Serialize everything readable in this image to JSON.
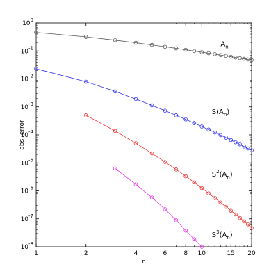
{
  "chart_data": {
    "type": "line",
    "xscale": "log",
    "yscale": "log",
    "xlim": [
      1,
      20
    ],
    "ylim": [
      1e-08,
      1
    ],
    "xlabel": "n",
    "ylabel": "abs. error",
    "title": "",
    "grid": false,
    "legend": "none",
    "x_ticks": [
      {
        "value": 1,
        "label": "1"
      },
      {
        "value": 2,
        "label": "2"
      },
      {
        "value": 4,
        "label": "4"
      },
      {
        "value": 6,
        "label": "6"
      },
      {
        "value": 8,
        "label": "8"
      },
      {
        "value": 10,
        "label": "10"
      },
      {
        "value": 15,
        "label": "15"
      },
      {
        "value": 20,
        "label": "20"
      }
    ],
    "y_ticks": [
      {
        "value": 1,
        "base": "10",
        "exp": "0"
      },
      {
        "value": 0.1,
        "base": "10",
        "exp": "-1"
      },
      {
        "value": 0.01,
        "base": "10",
        "exp": "-2"
      },
      {
        "value": 0.001,
        "base": "10",
        "exp": "-3"
      },
      {
        "value": 0.0001,
        "base": "10",
        "exp": "-4"
      },
      {
        "value": 1e-05,
        "base": "10",
        "exp": "-5"
      },
      {
        "value": 1e-06,
        "base": "10",
        "exp": "-6"
      },
      {
        "value": 1e-07,
        "base": "10",
        "exp": "-7"
      },
      {
        "value": 1e-08,
        "base": "10",
        "exp": "-8"
      }
    ],
    "series": [
      {
        "key": "a",
        "label_main": "A",
        "label_sup": "",
        "label_sub": "n",
        "label_pos": [
          13,
          0.147
        ],
        "color": "#555555",
        "x": [
          1,
          2,
          3,
          4,
          5,
          6,
          7,
          8,
          9,
          10,
          11,
          12,
          13,
          14,
          15,
          16,
          17,
          18,
          19,
          20
        ],
        "y": [
          0.459,
          0.318,
          0.242,
          0.1956,
          0.164,
          0.141,
          0.1237,
          0.1102,
          0.0993,
          0.0904,
          0.0829,
          0.0766,
          0.0711,
          0.0664,
          0.0622,
          0.0585,
          0.0553,
          0.0523,
          0.0497,
          0.0473
        ]
      },
      {
        "key": "s1",
        "label_main": "S(A",
        "label_sup": "",
        "label_sub": "n",
        "label_tail": ")",
        "label_pos": [
          11.5,
          0.00055
        ],
        "color": "#3333ee",
        "x": [
          1,
          2,
          3,
          4,
          5,
          6,
          7,
          8,
          9,
          10,
          11,
          12,
          13,
          14,
          15,
          16,
          17,
          18,
          19,
          20
        ],
        "y": [
          0.023,
          0.00794,
          0.00359,
          0.00191,
          0.00114,
          0.000733,
          0.000501,
          0.000357,
          0.000263,
          0.000199,
          0.000155,
          0.000122,
          9.77e-05,
          7.94e-05,
          6.52e-05,
          5.41e-05,
          4.54e-05,
          3.84e-05,
          3.28e-05,
          2.81e-05
        ]
      },
      {
        "key": "s2",
        "label_main": "S",
        "label_sup": "2",
        "label_sub": "n",
        "label_mid": "(A",
        "label_tail": ")",
        "label_pos": [
          11.5,
          3.2e-06
        ],
        "color": "#ee3333",
        "x": [
          2,
          3,
          4,
          5,
          6,
          7,
          8,
          9,
          10,
          11,
          12,
          13,
          14,
          15,
          16,
          17,
          18,
          19,
          20
        ],
        "y": [
          0.000501,
          0.000138,
          5.01e-05,
          2.19e-05,
          1.07e-05,
          5.78e-06,
          3.31e-06,
          2e-06,
          1.26e-06,
          8.13e-07,
          5.5e-07,
          3.8e-07,
          2.68e-07,
          1.94e-07,
          1.44e-07,
          1.07e-07,
          8.13e-08,
          6.31e-08,
          4.68e-08
        ]
      },
      {
        "key": "s3",
        "label_main": "S",
        "label_sup": "3",
        "label_sub": "n",
        "label_mid": "(A",
        "label_tail": ")",
        "label_pos": [
          11.5,
          2.2e-08
        ],
        "color": "#ee33ee",
        "x": [
          3,
          4,
          5,
          6,
          7,
          8,
          9,
          10
        ],
        "y": [
          6.3e-06,
          1.7e-06,
          5.8e-07,
          2.2e-07,
          8.9e-08,
          3.8e-08,
          1.86e-08,
          1e-08
        ]
      }
    ]
  }
}
